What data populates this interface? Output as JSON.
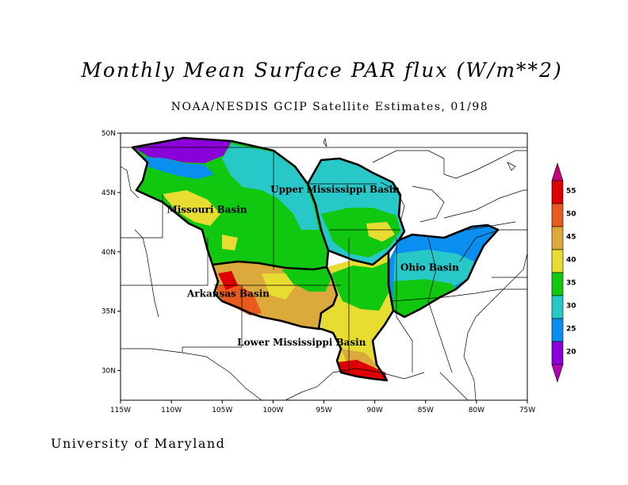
{
  "title": "Monthly Mean Surface PAR flux (W/m**2)",
  "subtitle": "NOAA/NESDIS GCIP Satellite Estimates, 01/98",
  "credit": "University of Maryland",
  "map": {
    "lon_range": [
      -115,
      -75
    ],
    "lat_range": [
      27.5,
      50
    ],
    "lon_ticks": [
      "115W",
      "110W",
      "105W",
      "100W",
      "95W",
      "90W",
      "85W",
      "80W",
      "75W"
    ],
    "lat_ticks": [
      "30N",
      "35N",
      "40N",
      "45N",
      "50N"
    ],
    "basins": [
      {
        "name": "Missouri Basin",
        "lon": -106.5,
        "lat": 43.3
      },
      {
        "name": "Upper Mississippi Basin",
        "lon": -93.9,
        "lat": 45.0
      },
      {
        "name": "Ohio Basin",
        "lon": -84.6,
        "lat": 38.4
      },
      {
        "name": "Arkansas Basin",
        "lon": -104.4,
        "lat": 36.2
      },
      {
        "name": "Lower Mississippi Basin",
        "lon": -97.2,
        "lat": 32.1
      }
    ]
  },
  "colorbar": {
    "labels": [
      "20",
      "25",
      "30",
      "35",
      "40",
      "45",
      "50",
      "55"
    ],
    "colors": [
      "#8a00d8",
      "#0a8ef0",
      "#28c8c8",
      "#10c810",
      "#e6dc32",
      "#dcaa3c",
      "#e85a1e",
      "#dc0000"
    ],
    "under_color": "#b400b4",
    "over_color": "#c8007a"
  }
}
